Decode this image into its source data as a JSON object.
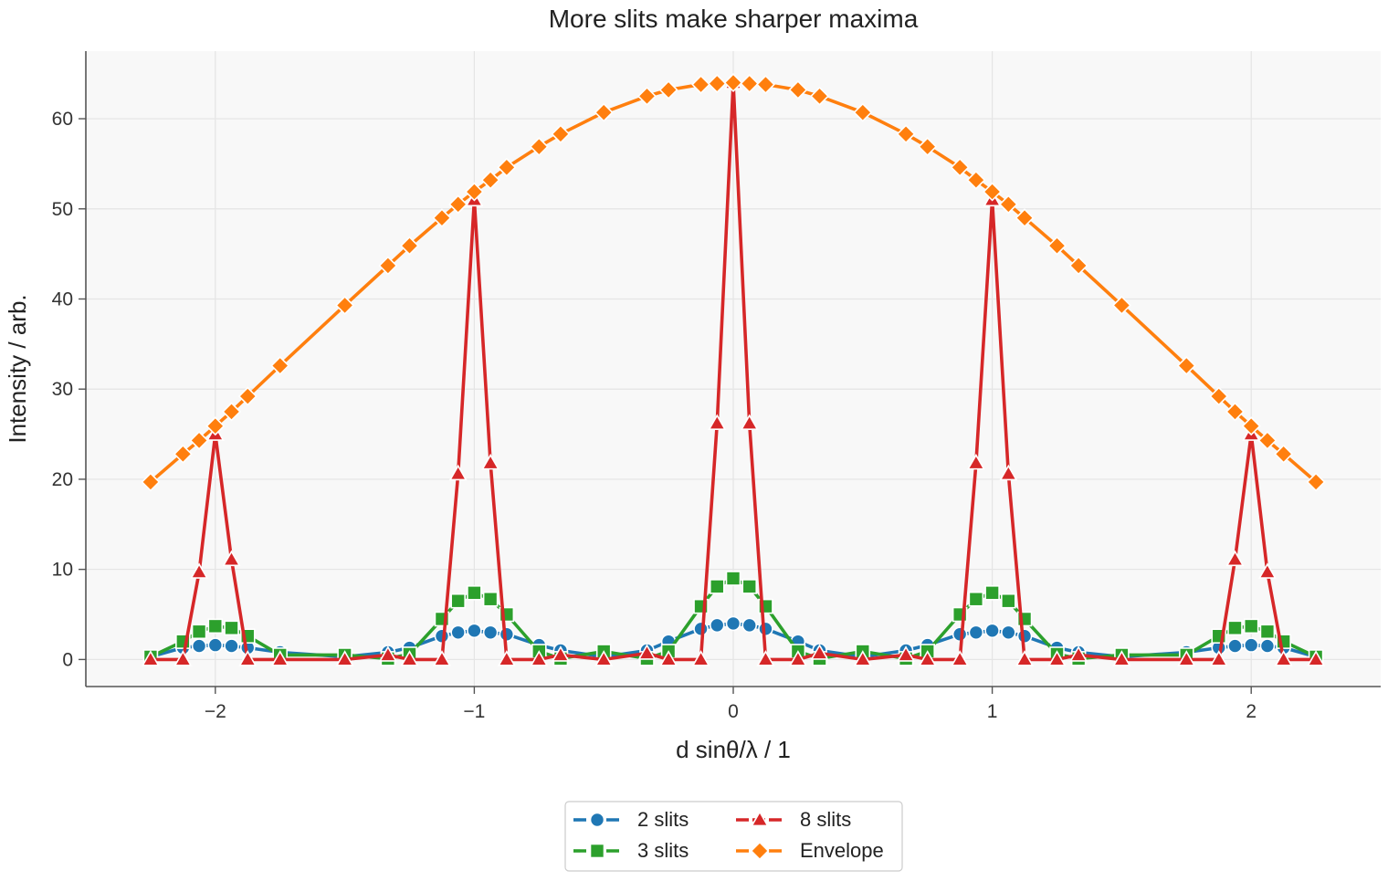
{
  "chart_data": {
    "type": "line",
    "title": "More slits make sharper maxima",
    "xlabel": "d sinθ/λ / 1",
    "ylabel": "Intensity / arb.",
    "xlim": [
      -2.5,
      2.5
    ],
    "ylim": [
      -3,
      67.5
    ],
    "xticks": [
      -2,
      -1,
      0,
      1,
      2
    ],
    "xtick_labels": [
      "−2",
      "−1",
      "0",
      "1",
      "2"
    ],
    "yticks": [
      0,
      10,
      20,
      30,
      40,
      50,
      60
    ],
    "ytick_labels": [
      "0",
      "10",
      "20",
      "30",
      "40",
      "50",
      "60"
    ],
    "grid": true,
    "legend_position": "bottom-center",
    "legend_columns": 2,
    "colors": {
      "2 slits": "#1f77b4",
      "3 slits": "#2ca02c",
      "8 slits": "#d62728",
      "Envelope": "#ff7f0e",
      "plot_background": "#f8f8f8",
      "grid": "#e5e5e5",
      "axis": "#555555"
    },
    "x": [
      -2.25,
      -2.125,
      -2.0625,
      -2.0,
      -1.9375,
      -1.875,
      -1.75,
      -1.5,
      -1.3333,
      -1.25,
      -1.125,
      -1.0625,
      -1.0,
      -0.9375,
      -0.875,
      -0.75,
      -0.6667,
      -0.5,
      -0.3333,
      -0.25,
      -0.125,
      -0.0625,
      0.0,
      0.0625,
      0.125,
      0.25,
      0.3333,
      0.5,
      0.6667,
      0.75,
      0.875,
      0.9375,
      1.0,
      1.0625,
      1.125,
      1.25,
      1.3333,
      1.5,
      1.75,
      1.875,
      1.9375,
      2.0,
      2.0625,
      2.125,
      2.25
    ],
    "series": [
      {
        "name": "2 slits",
        "marker": "circle",
        "color": "#1f77b4",
        "values": [
          0.3,
          1.3,
          1.5,
          1.6,
          1.5,
          1.3,
          0.8,
          0.3,
          0.8,
          1.3,
          2.6,
          3.0,
          3.2,
          3.0,
          2.8,
          1.6,
          1.0,
          0.3,
          1.0,
          2.0,
          3.4,
          3.8,
          4.0,
          3.8,
          3.4,
          2.0,
          1.0,
          0.3,
          1.0,
          1.6,
          2.8,
          3.0,
          3.2,
          3.0,
          2.6,
          1.3,
          0.8,
          0.3,
          0.8,
          1.3,
          1.5,
          1.6,
          1.5,
          1.3,
          0.3
        ]
      },
      {
        "name": "3 slits",
        "marker": "square",
        "color": "#2ca02c",
        "values": [
          0.3,
          2.0,
          3.1,
          3.7,
          3.5,
          2.6,
          0.5,
          0.5,
          0.1,
          0.6,
          4.5,
          6.5,
          7.4,
          6.7,
          5.0,
          0.9,
          0.1,
          0.9,
          0.1,
          0.9,
          5.9,
          8.1,
          9.0,
          8.1,
          5.9,
          0.9,
          0.1,
          0.9,
          0.1,
          0.9,
          5.0,
          6.7,
          7.4,
          6.5,
          4.5,
          0.6,
          0.1,
          0.5,
          0.5,
          2.6,
          3.5,
          3.7,
          3.1,
          2.0,
          0.3
        ]
      },
      {
        "name": "8 slits",
        "marker": "triangle",
        "color": "#d62728",
        "values": [
          0.0,
          0.0,
          9.7,
          25.0,
          11.1,
          0.0,
          0.0,
          0.0,
          0.5,
          0.0,
          0.0,
          20.6,
          51.0,
          21.8,
          0.0,
          0.0,
          0.5,
          0.0,
          0.7,
          0.0,
          0.0,
          26.2,
          64.0,
          26.2,
          0.0,
          0.0,
          0.7,
          0.0,
          0.5,
          0.0,
          0.0,
          21.8,
          51.0,
          20.6,
          0.0,
          0.0,
          0.5,
          0.0,
          0.0,
          0.0,
          11.1,
          25.0,
          9.7,
          0.0,
          0.0
        ]
      },
      {
        "name": "Envelope",
        "marker": "diamond",
        "color": "#ff7f0e",
        "values": [
          19.7,
          22.8,
          24.3,
          25.9,
          27.5,
          29.2,
          32.6,
          39.3,
          43.7,
          45.9,
          49.0,
          50.5,
          51.9,
          53.2,
          54.6,
          56.9,
          58.3,
          60.7,
          62.5,
          63.2,
          63.8,
          63.9,
          64.0,
          63.9,
          63.8,
          63.2,
          62.5,
          60.7,
          58.3,
          56.9,
          54.6,
          53.2,
          51.9,
          50.5,
          49.0,
          45.9,
          43.7,
          39.3,
          32.6,
          29.2,
          27.5,
          25.9,
          24.3,
          22.8,
          19.7
        ]
      }
    ]
  }
}
